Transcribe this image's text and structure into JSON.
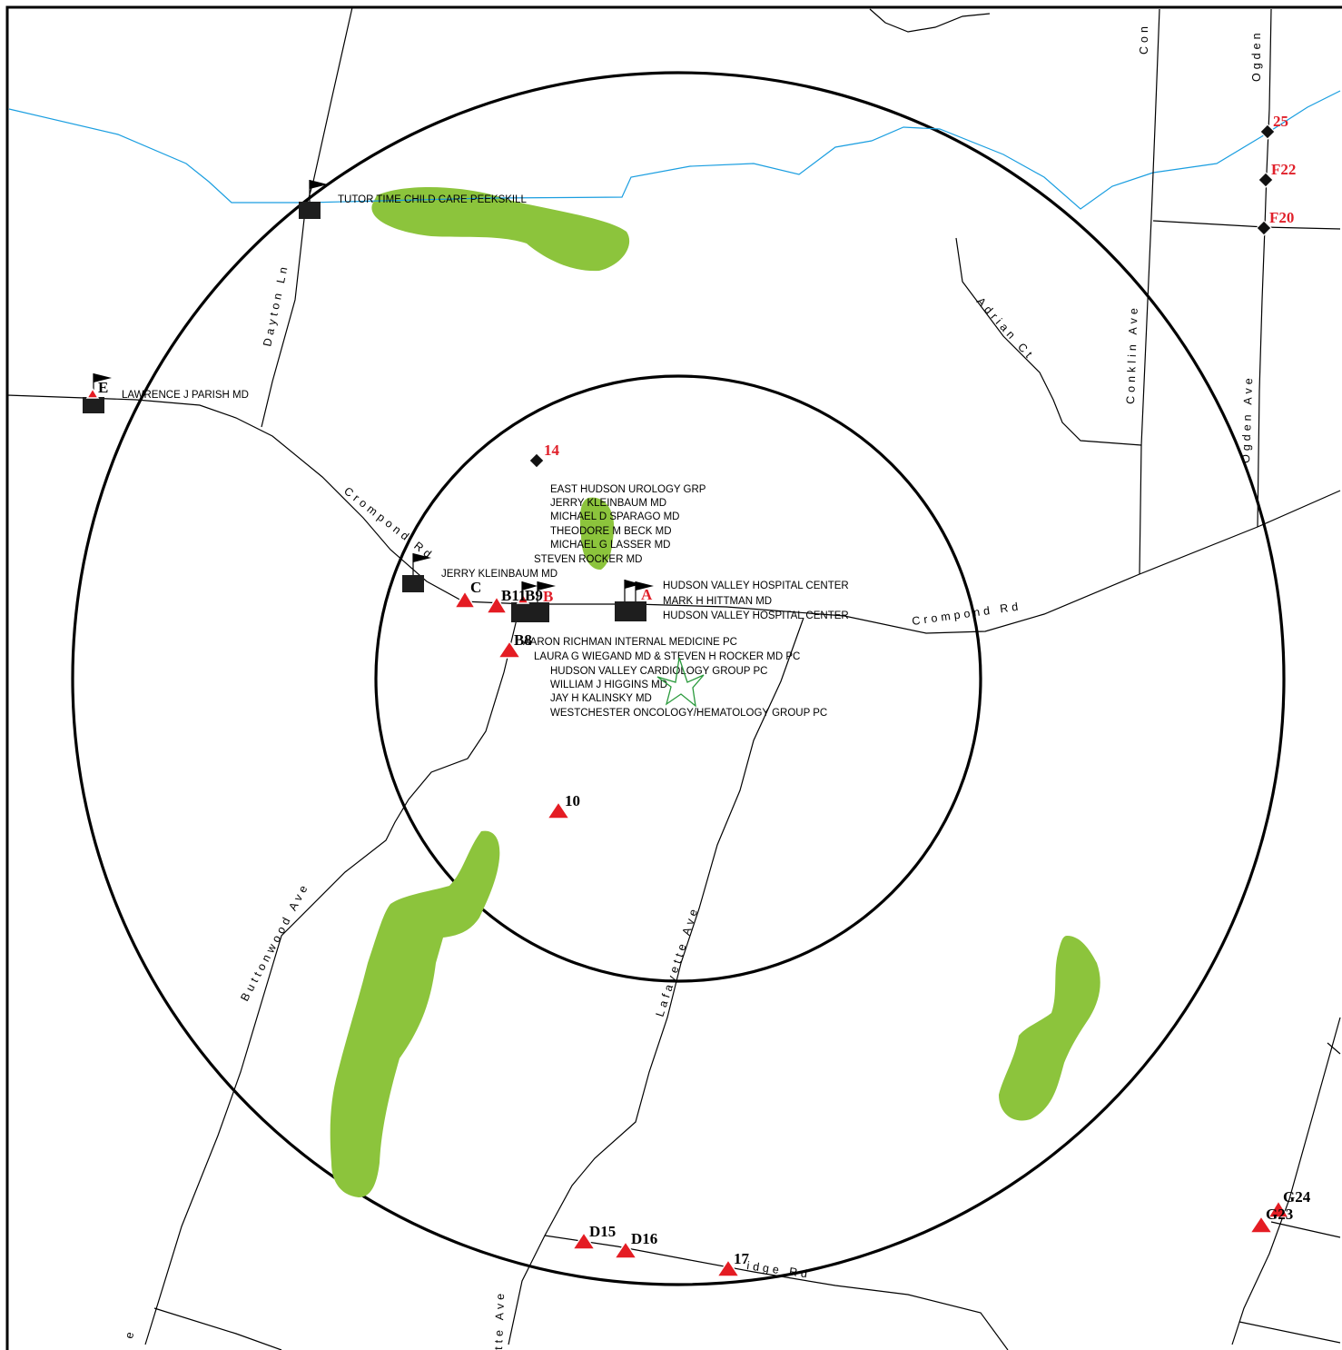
{
  "colors": {
    "inner_zone": "#fbf6b3",
    "outer_zone": "#fbf6b3",
    "park": "#8cc43c",
    "stream": "#1a9ee0",
    "marker_red": "#e41c23",
    "site_star": "#2a9a3c",
    "frame": "#000000"
  },
  "streets": [
    {
      "id": "dayton",
      "text": "Dayton Ln"
    },
    {
      "id": "crompond-w",
      "text": "Crompond Rd"
    },
    {
      "id": "crompond-e",
      "text": "Crompond Rd"
    },
    {
      "id": "adrian",
      "text": "Adrian Ct"
    },
    {
      "id": "conklin",
      "text": "Conklin Ave"
    },
    {
      "id": "conklin-top",
      "text": "Con"
    },
    {
      "id": "ogden-top",
      "text": "Ogden"
    },
    {
      "id": "ogden",
      "text": "Ogden Ave"
    },
    {
      "id": "buttonwood",
      "text": "Buttonwood Ave"
    },
    {
      "id": "lafayette",
      "text": "Lafayette Ave"
    },
    {
      "id": "lafayette-bottom",
      "text": "tte Ave"
    },
    {
      "id": "ridge",
      "text": "idge Rd"
    },
    {
      "id": "bottom-left",
      "text": "e"
    }
  ],
  "facility_labels": [
    {
      "id": "tutor",
      "text": "TUTOR TIME CHILD CARE PEEKSKILL"
    },
    {
      "id": "parish",
      "text": "LAWRENCE J PARISH MD"
    },
    {
      "id": "urology",
      "text": "EAST HUDSON UROLOGY GRP"
    },
    {
      "id": "kleinbaum1",
      "text": "JERRY KLEINBAUM MD"
    },
    {
      "id": "sparago",
      "text": "MICHAEL D SPARAGO MD"
    },
    {
      "id": "beck",
      "text": "THEODORE M BECK MD"
    },
    {
      "id": "lasser",
      "text": "MICHAEL G LASSER MD"
    },
    {
      "id": "rocker",
      "text": "STEVEN ROCKER MD"
    },
    {
      "id": "kleinbaum2",
      "text": "JERRY KLEINBAUM MD"
    },
    {
      "id": "hvhc1",
      "text": "HUDSON VALLEY HOSPITAL CENTER"
    },
    {
      "id": "hittman",
      "text": "MARK H HITTMAN MD"
    },
    {
      "id": "hvhc2",
      "text": "HUDSON VALLEY HOSPITAL CENTER"
    },
    {
      "id": "richman",
      "text": "AARON RICHMAN INTERNAL MEDICINE PC"
    },
    {
      "id": "wiegand",
      "text": "LAURA G WIEGAND MD & STEVEN H ROCKER MD PC"
    },
    {
      "id": "cardiology",
      "text": "HUDSON VALLEY CARDIOLOGY GROUP PC"
    },
    {
      "id": "higgins",
      "text": "WILLIAM J HIGGINS MD"
    },
    {
      "id": "kalinsky",
      "text": "JAY H KALINSKY MD"
    },
    {
      "id": "oncology",
      "text": "WESTCHESTER ONCOLOGY/HEMATOLOGY GROUP PC"
    }
  ],
  "site_markers": [
    {
      "id": "C",
      "text": "C",
      "color": "black"
    },
    {
      "id": "B11",
      "text": "B11",
      "color": "black"
    },
    {
      "id": "B9",
      "text": "B9",
      "color": "black"
    },
    {
      "id": "B-red",
      "text": "B",
      "color": "red"
    },
    {
      "id": "A",
      "text": "A",
      "color": "red"
    },
    {
      "id": "B8",
      "text": "B8",
      "color": "black"
    },
    {
      "id": "E",
      "text": "E",
      "color": "black"
    },
    {
      "id": "14",
      "text": "14",
      "color": "red"
    },
    {
      "id": "10",
      "text": "10",
      "color": "black"
    },
    {
      "id": "25",
      "text": "25",
      "color": "red"
    },
    {
      "id": "F22",
      "text": "F22",
      "color": "red"
    },
    {
      "id": "F20",
      "text": "F20",
      "color": "red"
    },
    {
      "id": "D15",
      "text": "D15",
      "color": "black"
    },
    {
      "id": "D16",
      "text": "D16",
      "color": "black"
    },
    {
      "id": "17",
      "text": "17",
      "color": "black"
    },
    {
      "id": "G24",
      "text": "G24",
      "color": "black"
    },
    {
      "id": "G23",
      "text": "G23",
      "color": "black"
    }
  ]
}
